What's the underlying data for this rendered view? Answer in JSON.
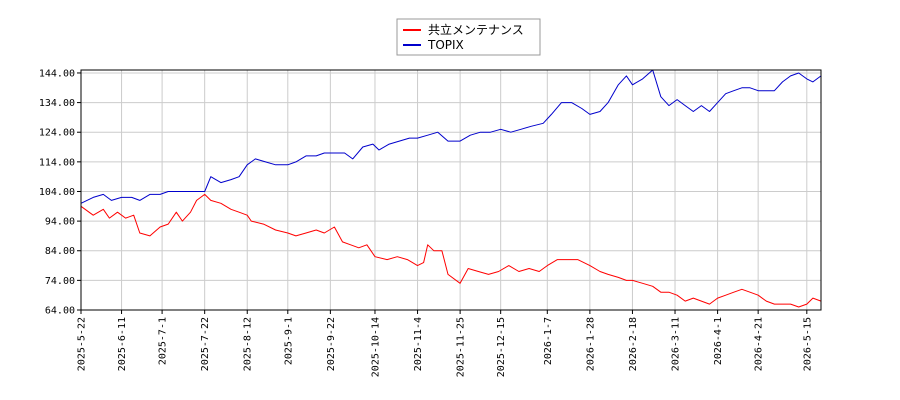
{
  "chart_data": {
    "type": "line",
    "title": "",
    "xlabel": "",
    "ylabel": "",
    "ylim": [
      64,
      145
    ],
    "yticks": [
      "64.00",
      "74.00",
      "84.00",
      "94.00",
      "104.00",
      "114.00",
      "124.00",
      "134.00",
      "144.00"
    ],
    "ytick_values": [
      64,
      74,
      84,
      94,
      104,
      114,
      124,
      134,
      144
    ],
    "xlim": [
      "2025-05-22",
      "2026-05-22"
    ],
    "xticks": [
      "2025-5-22",
      "2025-6-11",
      "2025-7-1",
      "2025-7-22",
      "2025-8-12",
      "2025-9-1",
      "2025-9-22",
      "2025-10-14",
      "2025-11-4",
      "2025-11-25",
      "2025-12-15",
      "2026-1-7",
      "2026-1-28",
      "2026-2-18",
      "2026-3-11",
      "2026-4-1",
      "2026-4-21",
      "2026-5-15"
    ],
    "grid": true,
    "legend_position": "top-center",
    "series": [
      {
        "name": "共立メンテナンス",
        "color": "#ff0000",
        "points": [
          [
            "2025-05-22",
            99
          ],
          [
            "2025-05-28",
            96
          ],
          [
            "2025-06-02",
            98
          ],
          [
            "2025-06-05",
            95
          ],
          [
            "2025-06-09",
            97
          ],
          [
            "2025-06-13",
            95
          ],
          [
            "2025-06-17",
            96
          ],
          [
            "2025-06-20",
            90
          ],
          [
            "2025-06-25",
            89
          ],
          [
            "2025-06-30",
            92
          ],
          [
            "2025-07-04",
            93
          ],
          [
            "2025-07-08",
            97
          ],
          [
            "2025-07-11",
            94
          ],
          [
            "2025-07-15",
            97
          ],
          [
            "2025-07-18",
            101
          ],
          [
            "2025-07-22",
            103
          ],
          [
            "2025-07-25",
            101
          ],
          [
            "2025-07-30",
            100
          ],
          [
            "2025-08-04",
            98
          ],
          [
            "2025-08-08",
            97
          ],
          [
            "2025-08-12",
            96
          ],
          [
            "2025-08-14",
            94
          ],
          [
            "2025-08-20",
            93
          ],
          [
            "2025-08-26",
            91
          ],
          [
            "2025-09-01",
            90
          ],
          [
            "2025-09-05",
            89
          ],
          [
            "2025-09-10",
            90
          ],
          [
            "2025-09-15",
            91
          ],
          [
            "2025-09-19",
            90
          ],
          [
            "2025-09-24",
            92
          ],
          [
            "2025-09-28",
            87
          ],
          [
            "2025-10-02",
            86
          ],
          [
            "2025-10-06",
            85
          ],
          [
            "2025-10-10",
            86
          ],
          [
            "2025-10-14",
            82
          ],
          [
            "2025-10-20",
            81
          ],
          [
            "2025-10-25",
            82
          ],
          [
            "2025-10-30",
            81
          ],
          [
            "2025-11-04",
            79
          ],
          [
            "2025-11-07",
            80
          ],
          [
            "2025-11-09",
            86
          ],
          [
            "2025-11-12",
            84
          ],
          [
            "2025-11-16",
            84
          ],
          [
            "2025-11-19",
            76
          ],
          [
            "2025-11-25",
            73
          ],
          [
            "2025-11-29",
            78
          ],
          [
            "2025-12-04",
            77
          ],
          [
            "2025-12-09",
            76
          ],
          [
            "2025-12-14",
            77
          ],
          [
            "2025-12-19",
            79
          ],
          [
            "2025-12-24",
            77
          ],
          [
            "2025-12-29",
            78
          ],
          [
            "2026-01-03",
            77
          ],
          [
            "2026-01-07",
            79
          ],
          [
            "2026-01-12",
            81
          ],
          [
            "2026-01-17",
            81
          ],
          [
            "2026-01-22",
            81
          ],
          [
            "2026-01-28",
            79
          ],
          [
            "2026-02-02",
            77
          ],
          [
            "2026-02-06",
            76
          ],
          [
            "2026-02-11",
            75
          ],
          [
            "2026-02-15",
            74
          ],
          [
            "2026-02-18",
            74
          ],
          [
            "2026-02-23",
            73
          ],
          [
            "2026-02-28",
            72
          ],
          [
            "2026-03-04",
            70
          ],
          [
            "2026-03-08",
            70
          ],
          [
            "2026-03-12",
            69
          ],
          [
            "2026-03-16",
            67
          ],
          [
            "2026-03-20",
            68
          ],
          [
            "2026-03-24",
            67
          ],
          [
            "2026-03-28",
            66
          ],
          [
            "2026-04-01",
            68
          ],
          [
            "2026-04-05",
            69
          ],
          [
            "2026-04-09",
            70
          ],
          [
            "2026-04-13",
            71
          ],
          [
            "2026-04-17",
            70
          ],
          [
            "2026-04-21",
            69
          ],
          [
            "2026-04-25",
            67
          ],
          [
            "2026-04-29",
            66
          ],
          [
            "2026-05-03",
            66
          ],
          [
            "2026-05-07",
            66
          ],
          [
            "2026-05-11",
            65
          ],
          [
            "2026-05-15",
            66
          ],
          [
            "2026-05-18",
            68
          ],
          [
            "2026-05-22",
            67
          ]
        ]
      },
      {
        "name": "TOPIX",
        "color": "#0000cc",
        "points": [
          [
            "2025-05-22",
            100
          ],
          [
            "2025-05-28",
            102
          ],
          [
            "2025-06-02",
            103
          ],
          [
            "2025-06-06",
            101
          ],
          [
            "2025-06-11",
            102
          ],
          [
            "2025-06-16",
            102
          ],
          [
            "2025-06-20",
            101
          ],
          [
            "2025-06-25",
            103
          ],
          [
            "2025-06-30",
            103
          ],
          [
            "2025-07-04",
            104
          ],
          [
            "2025-07-09",
            104
          ],
          [
            "2025-07-14",
            104
          ],
          [
            "2025-07-18",
            104
          ],
          [
            "2025-07-22",
            104
          ],
          [
            "2025-07-25",
            109
          ],
          [
            "2025-07-30",
            107
          ],
          [
            "2025-08-04",
            108
          ],
          [
            "2025-08-08",
            109
          ],
          [
            "2025-08-12",
            113
          ],
          [
            "2025-08-16",
            115
          ],
          [
            "2025-08-21",
            114
          ],
          [
            "2025-08-26",
            113
          ],
          [
            "2025-09-01",
            113
          ],
          [
            "2025-09-05",
            114
          ],
          [
            "2025-09-10",
            116
          ],
          [
            "2025-09-15",
            116
          ],
          [
            "2025-09-19",
            117
          ],
          [
            "2025-09-24",
            117
          ],
          [
            "2025-09-29",
            117
          ],
          [
            "2025-10-03",
            115
          ],
          [
            "2025-10-08",
            119
          ],
          [
            "2025-10-13",
            120
          ],
          [
            "2025-10-16",
            118
          ],
          [
            "2025-10-21",
            120
          ],
          [
            "2025-10-26",
            121
          ],
          [
            "2025-10-31",
            122
          ],
          [
            "2025-11-04",
            122
          ],
          [
            "2025-11-09",
            123
          ],
          [
            "2025-11-14",
            124
          ],
          [
            "2025-11-19",
            121
          ],
          [
            "2025-11-25",
            121
          ],
          [
            "2025-11-30",
            123
          ],
          [
            "2025-12-05",
            124
          ],
          [
            "2025-12-10",
            124
          ],
          [
            "2025-12-15",
            125
          ],
          [
            "2025-12-20",
            124
          ],
          [
            "2025-12-25",
            125
          ],
          [
            "2025-12-30",
            126
          ],
          [
            "2026-01-05",
            127
          ],
          [
            "2026-01-09",
            130
          ],
          [
            "2026-01-14",
            134
          ],
          [
            "2026-01-19",
            134
          ],
          [
            "2026-01-24",
            132
          ],
          [
            "2026-01-28",
            130
          ],
          [
            "2026-02-02",
            131
          ],
          [
            "2026-02-06",
            134
          ],
          [
            "2026-02-11",
            140
          ],
          [
            "2026-02-15",
            143
          ],
          [
            "2026-02-18",
            140
          ],
          [
            "2026-02-23",
            142
          ],
          [
            "2026-02-28",
            145
          ],
          [
            "2026-03-04",
            136
          ],
          [
            "2026-03-08",
            133
          ],
          [
            "2026-03-12",
            135
          ],
          [
            "2026-03-16",
            133
          ],
          [
            "2026-03-20",
            131
          ],
          [
            "2026-03-24",
            133
          ],
          [
            "2026-03-28",
            131
          ],
          [
            "2026-04-01",
            134
          ],
          [
            "2026-04-05",
            137
          ],
          [
            "2026-04-09",
            138
          ],
          [
            "2026-04-13",
            139
          ],
          [
            "2026-04-17",
            139
          ],
          [
            "2026-04-21",
            138
          ],
          [
            "2026-04-25",
            138
          ],
          [
            "2026-04-29",
            138
          ],
          [
            "2026-05-03",
            141
          ],
          [
            "2026-05-07",
            143
          ],
          [
            "2026-05-11",
            144
          ],
          [
            "2026-05-15",
            142
          ],
          [
            "2026-05-18",
            141
          ],
          [
            "2026-05-22",
            143
          ]
        ]
      }
    ]
  }
}
